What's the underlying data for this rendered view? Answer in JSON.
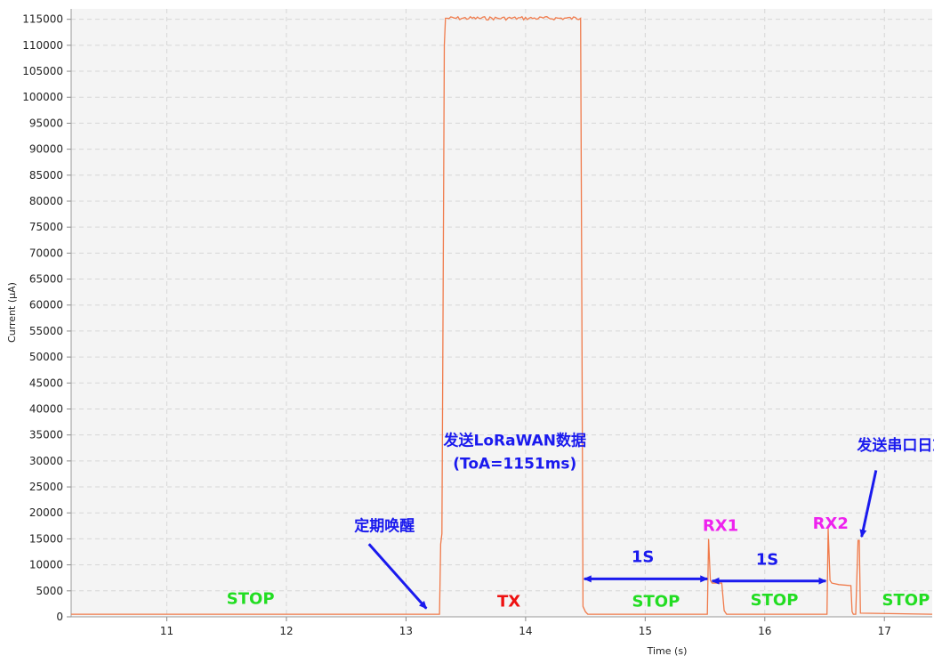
{
  "chart_data": {
    "type": "line",
    "title": "",
    "xlabel": "Time (s)",
    "ylabel": "Current (µA)",
    "xlim": [
      10.2,
      17.4
    ],
    "ylim": [
      0,
      117000
    ],
    "x_ticks": [
      11,
      12,
      13,
      14,
      15,
      16,
      17
    ],
    "y_ticks": [
      0,
      5000,
      10000,
      15000,
      20000,
      25000,
      30000,
      35000,
      40000,
      45000,
      50000,
      55000,
      60000,
      65000,
      70000,
      75000,
      80000,
      85000,
      90000,
      95000,
      100000,
      105000,
      110000,
      115000
    ],
    "grid": true,
    "line_color": "#f07a4a",
    "series": [
      {
        "x": [
          10.2,
          13.28,
          13.29,
          13.3,
          13.31,
          13.32,
          13.33,
          14.46,
          14.47,
          14.48,
          14.5,
          14.52,
          15.52,
          15.53,
          15.545,
          15.56,
          15.6,
          15.64,
          15.66,
          15.68,
          16.52,
          16.53,
          16.545,
          16.56,
          16.62,
          16.72,
          16.73,
          16.74,
          16.76,
          16.78,
          16.79,
          16.8,
          17.4
        ],
        "y": [
          500,
          500,
          14000,
          16000,
          60000,
          110000,
          115200,
          115200,
          60000,
          2000,
          1000,
          500,
          500,
          15000,
          7000,
          6500,
          6500,
          6500,
          1200,
          500,
          500,
          17000,
          7000,
          6500,
          6200,
          6000,
          1000,
          500,
          500,
          14700,
          14700,
          700,
          500
        ]
      }
    ],
    "annotations": [
      {
        "text": "STOP",
        "x": 11.7,
        "y": 2500,
        "color": "#22dd22",
        "size": 18
      },
      {
        "text": "TX",
        "x": 13.86,
        "y": 2000,
        "color": "#ee1111",
        "size": 18
      },
      {
        "text": "STOP",
        "x": 15.09,
        "y": 2000,
        "color": "#22dd22",
        "size": 18
      },
      {
        "text": "STOP",
        "x": 16.08,
        "y": 2200,
        "color": "#22dd22",
        "size": 18
      },
      {
        "text": "STOP",
        "x": 17.18,
        "y": 2200,
        "color": "#22dd22",
        "size": 18
      },
      {
        "text": "定期唤醒",
        "x": 12.82,
        "y": 16500,
        "color": "#1a1aee",
        "size": 17
      },
      {
        "text": "发送LoRaWAN数据",
        "x": 13.91,
        "y": 33000,
        "color": "#1a1aee",
        "size": 17
      },
      {
        "text": "(ToA=1151ms)",
        "x": 13.91,
        "y": 28500,
        "color": "#1a1aee",
        "size": 17
      },
      {
        "text": "1S",
        "x": 14.98,
        "y": 10500,
        "color": "#1a1aee",
        "size": 18
      },
      {
        "text": "1S",
        "x": 16.02,
        "y": 10000,
        "color": "#1a1aee",
        "size": 18
      },
      {
        "text": "RX1",
        "x": 15.63,
        "y": 16500,
        "color": "#ee22ee",
        "size": 18
      },
      {
        "text": "RX2",
        "x": 16.55,
        "y": 17000,
        "color": "#ee22ee",
        "size": 18
      },
      {
        "text": "发送串口日志",
        "x": 17.15,
        "y": 32000,
        "color": "#1a1aee",
        "size": 17
      }
    ],
    "arrows": [
      {
        "from": [
          12.69,
          14000
        ],
        "to": [
          13.17,
          1600
        ],
        "heads": "end"
      },
      {
        "from": [
          16.93,
          28200
        ],
        "to": [
          16.81,
          15400
        ],
        "heads": "end"
      },
      {
        "from": [
          14.49,
          7300
        ],
        "to": [
          15.52,
          7300
        ],
        "heads": "both"
      },
      {
        "from": [
          15.56,
          6900
        ],
        "to": [
          16.51,
          6900
        ],
        "heads": "both"
      }
    ],
    "arrow_color": "#1a1aee"
  }
}
